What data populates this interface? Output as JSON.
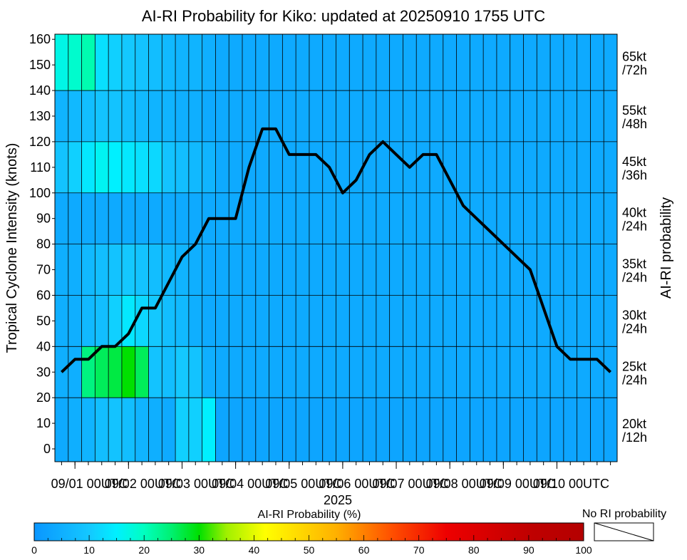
{
  "chart_data": {
    "type": "heatmap",
    "title": "AI-RI Probability for Kiko: updated at 20250910 1755 UTC",
    "ylabel": "Tropical Cyclone Intensity (knots)",
    "right_label": "AI-RI probability",
    "ylim": [
      0,
      160
    ],
    "yticks": [
      0,
      10,
      20,
      30,
      40,
      50,
      60,
      70,
      80,
      90,
      100,
      110,
      120,
      130,
      140,
      150,
      160
    ],
    "xlabel_year": "2025",
    "x_tick_labels": [
      "09/01 00UTC",
      "09/02 00UTC",
      "09/03 00UTC",
      "09/04 00UTC",
      "09/05 00UTC",
      "09/06 00UTC",
      "09/07 00UTC",
      "09/08 00UTC",
      "09/09 00UTC",
      "09/10 00UTC"
    ],
    "time_step_hours": 6,
    "n_time_steps": 42,
    "bands": [
      {
        "label": "20kt/12h",
        "line1": "20kt",
        "line2": "/12h",
        "y_range": [
          -5,
          20
        ]
      },
      {
        "label": "25kt/24h",
        "line1": "25kt",
        "line2": "/24h",
        "y_range": [
          20,
          40
        ]
      },
      {
        "label": "30kt/24h",
        "line1": "30kt",
        "line2": "/24h",
        "y_range": [
          40,
          60
        ]
      },
      {
        "label": "35kt/24h",
        "line1": "35kt",
        "line2": "/24h",
        "y_range": [
          60,
          80
        ]
      },
      {
        "label": "40kt/24h",
        "line1": "40kt",
        "line2": "/24h",
        "y_range": [
          80,
          100
        ]
      },
      {
        "label": "45kt/36h",
        "line1": "45kt",
        "line2": "/36h",
        "y_range": [
          100,
          120
        ]
      },
      {
        "label": "55kt/48h",
        "line1": "55kt",
        "line2": "/48h",
        "y_range": [
          120,
          140
        ]
      },
      {
        "label": "65kt/72h",
        "line1": "65kt",
        "line2": "/72h",
        "y_range": [
          140,
          162
        ]
      }
    ],
    "probabilities": [
      [
        4,
        5,
        6,
        8,
        9,
        8,
        6,
        5,
        4,
        11,
        11,
        15,
        3,
        3,
        3,
        3,
        3,
        3,
        3,
        3,
        3,
        3,
        3,
        3,
        3,
        3,
        3,
        3,
        3,
        3,
        3,
        3,
        3,
        3,
        3,
        3,
        3,
        3,
        3,
        3,
        3,
        3
      ],
      [
        5,
        5,
        24,
        26,
        27,
        30,
        26,
        9,
        8,
        10,
        9,
        5,
        4,
        4,
        4,
        4,
        4,
        4,
        4,
        4,
        4,
        4,
        4,
        4,
        4,
        4,
        4,
        4,
        4,
        4,
        4,
        4,
        4,
        4,
        4,
        4,
        4,
        4,
        4,
        4,
        4,
        4
      ],
      [
        5,
        5,
        7,
        8,
        11,
        14,
        12,
        10,
        8,
        7,
        5,
        4,
        4,
        4,
        4,
        4,
        4,
        4,
        4,
        4,
        4,
        4,
        4,
        4,
        4,
        4,
        4,
        4,
        4,
        4,
        4,
        4,
        4,
        4,
        4,
        4,
        4,
        4,
        4,
        4,
        4,
        4
      ],
      [
        5,
        5,
        7,
        8,
        9,
        10,
        9,
        8,
        7,
        6,
        5,
        4,
        4,
        4,
        4,
        4,
        4,
        4,
        4,
        4,
        4,
        4,
        4,
        4,
        4,
        4,
        4,
        4,
        4,
        4,
        4,
        4,
        4,
        4,
        4,
        4,
        4,
        4,
        4,
        4,
        4,
        4
      ],
      [
        4,
        4,
        4,
        4,
        4,
        4,
        4,
        4,
        4,
        4,
        4,
        4,
        4,
        4,
        4,
        4,
        4,
        4,
        4,
        4,
        4,
        4,
        4,
        4,
        4,
        4,
        4,
        4,
        4,
        4,
        4,
        4,
        4,
        4,
        4,
        4,
        4,
        4,
        4,
        4,
        4,
        4
      ],
      [
        9,
        11,
        14,
        16,
        15,
        14,
        13,
        12,
        9,
        8,
        7,
        6,
        4,
        4,
        4,
        4,
        4,
        4,
        4,
        4,
        4,
        4,
        4,
        4,
        4,
        4,
        4,
        4,
        4,
        4,
        4,
        4,
        4,
        4,
        4,
        4,
        4,
        4,
        4,
        4,
        4,
        4
      ],
      [
        6,
        7,
        8,
        9,
        9,
        8,
        7,
        6,
        6,
        5,
        5,
        4,
        4,
        4,
        4,
        4,
        4,
        4,
        4,
        4,
        4,
        4,
        4,
        4,
        4,
        4,
        4,
        4,
        4,
        4,
        4,
        4,
        4,
        4,
        4,
        4,
        4,
        4,
        4,
        4,
        4,
        4
      ],
      [
        17,
        19,
        21,
        13,
        11,
        10,
        9,
        8,
        7,
        6,
        6,
        5,
        4,
        4,
        4,
        4,
        4,
        4,
        4,
        4,
        4,
        4,
        4,
        4,
        4,
        4,
        4,
        4,
        4,
        4,
        4,
        4,
        4,
        4,
        4,
        4,
        4,
        4,
        4,
        4,
        4,
        4
      ]
    ],
    "series": [
      {
        "x": [
          0,
          1,
          2,
          3,
          4,
          5,
          6,
          7,
          8,
          9,
          10,
          11,
          12,
          13,
          14,
          15,
          16,
          17,
          18,
          19,
          20,
          21,
          22,
          23,
          24,
          25,
          26,
          27,
          28,
          29,
          30,
          31,
          32,
          33,
          34,
          35,
          36,
          37,
          38,
          39,
          40,
          41
        ],
        "values": [
          30,
          35,
          35,
          40,
          40,
          45,
          55,
          55,
          65,
          75,
          80,
          90,
          90,
          90,
          110,
          125,
          125,
          115,
          115,
          115,
          110,
          100,
          105,
          115,
          120,
          115,
          110,
          115,
          115,
          105,
          95,
          90,
          85,
          80,
          75,
          70,
          55,
          40,
          35,
          35,
          35,
          30
        ]
      }
    ],
    "colorbar": {
      "label": "AI-RI Probability (%)",
      "ticks": [
        0,
        10,
        20,
        30,
        40,
        50,
        60,
        70,
        80,
        90,
        100
      ],
      "stops": [
        {
          "v": 0,
          "color": "#0a96ff"
        },
        {
          "v": 10,
          "color": "#14c8ff"
        },
        {
          "v": 15,
          "color": "#00f0ff"
        },
        {
          "v": 20,
          "color": "#00ffc0"
        },
        {
          "v": 25,
          "color": "#00f070"
        },
        {
          "v": 30,
          "color": "#00e000"
        },
        {
          "v": 35,
          "color": "#a0f000"
        },
        {
          "v": 42,
          "color": "#ffff00"
        },
        {
          "v": 55,
          "color": "#ffb000"
        },
        {
          "v": 65,
          "color": "#ff5000"
        },
        {
          "v": 75,
          "color": "#ee0000"
        },
        {
          "v": 90,
          "color": "#c00000"
        },
        {
          "v": 100,
          "color": "#b40000"
        }
      ],
      "no_ri_label": "No RI probability"
    }
  }
}
